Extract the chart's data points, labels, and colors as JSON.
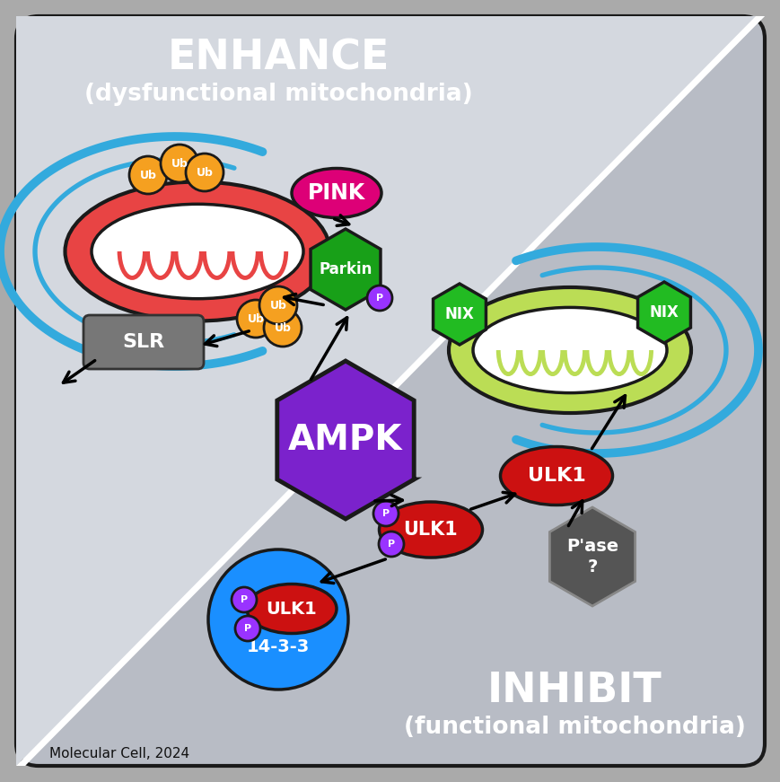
{
  "bg_outer": "#aaaaaa",
  "panel_bg_light": "#d4d8df",
  "panel_bg_dark": "#b8bcc5",
  "border_color": "#1a1a1a",
  "title_enhance": "ENHANCE",
  "subtitle_enhance": "(dysfunctional mitochondria)",
  "title_inhibit": "INHIBIT",
  "subtitle_inhibit": "(functional mitochondria)",
  "citation": "Molecular Cell, 2024",
  "ampk_color": "#7B22CC",
  "ampk_text": "AMPK",
  "pink_color": "#DD0077",
  "pink_text": "PINK",
  "parkin_color": "#18A018",
  "parkin_text": "Parkin",
  "ub_color": "#F5A020",
  "ub_text": "Ub",
  "slr_color": "#777777",
  "slr_text": "SLR",
  "nix_color": "#22BB22",
  "nix_text": "NIX",
  "ulk1_color": "#CC1111",
  "ulk1_text": "ULK1",
  "p143_color": "#1a8FFF",
  "p143_text": "14-3-3",
  "pase_color": "#555555",
  "pase_text": "P'ase\n?",
  "p_color": "#9933FF",
  "p_text": "P",
  "mito_dysfunc_fill": "#E84444",
  "mito_func_fill": "#BBDD55",
  "autophagy_color": "#33AADD",
  "white": "#FFFFFF",
  "black": "#000000",
  "diag_white": "#FFFFFF"
}
